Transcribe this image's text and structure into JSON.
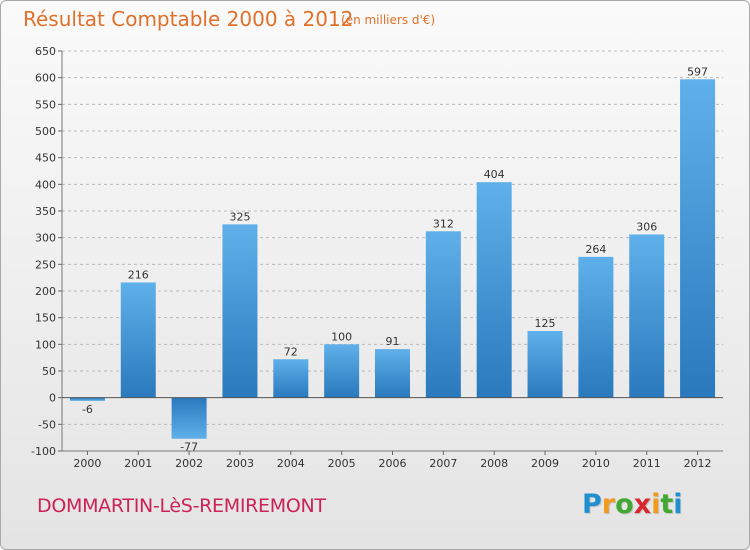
{
  "header": {
    "title": "Résultat Comptable 2000 à 2012",
    "unit": "(en milliers d'€)"
  },
  "footer": {
    "commune": "DOMMARTIN-LèS-REMIREMONT",
    "logo_letters": [
      {
        "ch": "P",
        "color": "#1f8fd0"
      },
      {
        "ch": "r",
        "color": "#f29a1f"
      },
      {
        "ch": "o",
        "color": "#43a832"
      },
      {
        "ch": "x",
        "color": "#d8282f"
      },
      {
        "ch": "i",
        "color": "#f29a1f"
      },
      {
        "ch": "t",
        "color": "#43a832"
      },
      {
        "ch": "i",
        "color": "#1f8fd0"
      }
    ]
  },
  "chart_data": {
    "type": "bar",
    "title": "Résultat Comptable 2000 à 2012",
    "subtitle": "(en milliers d'€)",
    "categories": [
      "2000",
      "2001",
      "2002",
      "2003",
      "2004",
      "2005",
      "2006",
      "2007",
      "2008",
      "2009",
      "2010",
      "2011",
      "2012"
    ],
    "values": [
      -6,
      216,
      -77,
      325,
      72,
      100,
      91,
      312,
      404,
      125,
      264,
      306,
      597
    ],
    "ylim": [
      -100,
      650
    ],
    "yticks": [
      -100,
      -50,
      0,
      50,
      100,
      150,
      200,
      250,
      300,
      350,
      400,
      450,
      500,
      550,
      600,
      650
    ],
    "grid": "horizontal dashed",
    "bar_color": "#3b95d8",
    "colors": {
      "bar_top": "#5fb0ea",
      "bar_bottom": "#2a79bd",
      "zero_line": "#555555"
    }
  }
}
